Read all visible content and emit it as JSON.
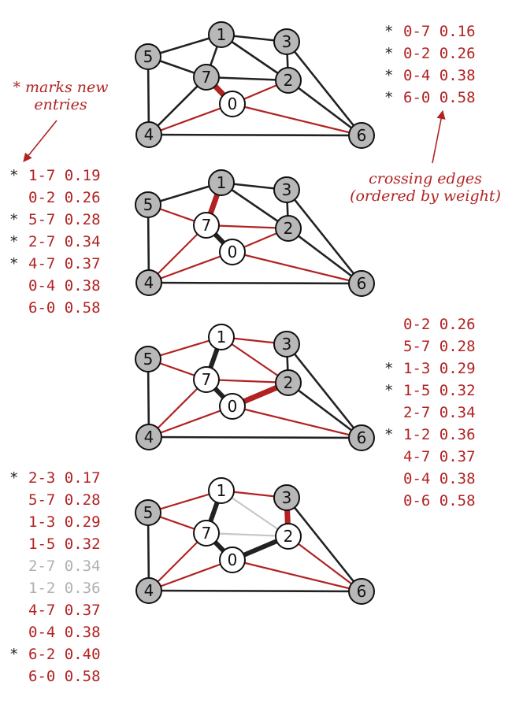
{
  "colors": {
    "black_edge": "#222222",
    "crossing_edge": "#b22222",
    "ineligible_edge": "#c8c8c8",
    "tree_node": "#ffffff",
    "nontree_node": "#b8b8b8"
  },
  "annotations": {
    "new_entries": [
      "* marks new",
      "entries"
    ],
    "crossing": [
      "crossing edges",
      "(ordered by weight)"
    ]
  },
  "steps": [
    {
      "tree_nodes": [
        "0"
      ],
      "highlight": "0-7",
      "list": [
        {
          "star": "*",
          "text": "0-7 0.16",
          "style": "red"
        },
        {
          "star": "*",
          "text": "0-2 0.26",
          "style": "red"
        },
        {
          "star": "*",
          "text": "0-4 0.38",
          "style": "red"
        },
        {
          "star": "*",
          "text": "6-0 0.58",
          "style": "red"
        }
      ]
    },
    {
      "tree_nodes": [
        "0",
        "7"
      ],
      "highlight": "1-7",
      "list": [
        {
          "star": "*",
          "text": "1-7 0.19",
          "style": "red"
        },
        {
          "star": "",
          "text": "0-2 0.26",
          "style": "red"
        },
        {
          "star": "*",
          "text": "5-7 0.28",
          "style": "red"
        },
        {
          "star": "*",
          "text": "2-7 0.34",
          "style": "red"
        },
        {
          "star": "*",
          "text": "4-7 0.37",
          "style": "red"
        },
        {
          "star": "",
          "text": "0-4 0.38",
          "style": "red"
        },
        {
          "star": "",
          "text": "6-0 0.58",
          "style": "red"
        }
      ]
    },
    {
      "tree_nodes": [
        "0",
        "7",
        "1"
      ],
      "highlight": "0-2",
      "list": [
        {
          "star": "",
          "text": "0-2 0.26",
          "style": "red"
        },
        {
          "star": "",
          "text": "5-7 0.28",
          "style": "red"
        },
        {
          "star": "*",
          "text": "1-3 0.29",
          "style": "red"
        },
        {
          "star": "*",
          "text": "1-5 0.32",
          "style": "red"
        },
        {
          "star": "",
          "text": "2-7 0.34",
          "style": "red"
        },
        {
          "star": "*",
          "text": "1-2 0.36",
          "style": "red"
        },
        {
          "star": "",
          "text": "4-7 0.37",
          "style": "red"
        },
        {
          "star": "",
          "text": "0-4 0.38",
          "style": "red"
        },
        {
          "star": "",
          "text": "0-6 0.58",
          "style": "red"
        }
      ]
    },
    {
      "tree_nodes": [
        "0",
        "7",
        "1",
        "2"
      ],
      "highlight": "2-3",
      "list": [
        {
          "star": "*",
          "text": "2-3 0.17",
          "style": "red"
        },
        {
          "star": "",
          "text": "5-7 0.28",
          "style": "red"
        },
        {
          "star": "",
          "text": "1-3 0.29",
          "style": "red"
        },
        {
          "star": "",
          "text": "1-5 0.32",
          "style": "red"
        },
        {
          "star": "",
          "text": "2-7 0.34",
          "style": "gray"
        },
        {
          "star": "",
          "text": "1-2 0.36",
          "style": "gray"
        },
        {
          "star": "",
          "text": "4-7 0.37",
          "style": "red"
        },
        {
          "star": "",
          "text": "0-4 0.38",
          "style": "red"
        },
        {
          "star": "*",
          "text": "6-2 0.40",
          "style": "red"
        },
        {
          "star": "",
          "text": "6-0 0.58",
          "style": "red"
        }
      ]
    }
  ]
}
